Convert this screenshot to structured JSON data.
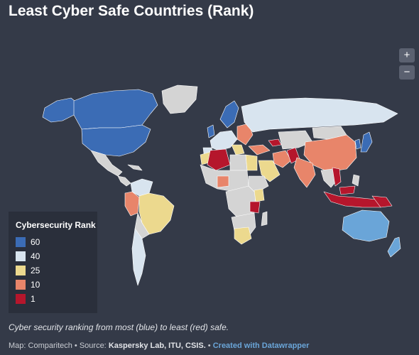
{
  "title": "Least Cyber Safe Countries (Rank)",
  "caption": "Cyber security ranking from most (blue) to least (red) safe.",
  "footer": {
    "map_prefix": "Map: Comparitech • Source: ",
    "sources": "Kaspersky Lab, ITU, CSIS.",
    "separator": " • ",
    "credit": "Created with Datawrapper"
  },
  "zoom": {
    "in_label": "+",
    "out_label": "−"
  },
  "legend": {
    "title": "Cybersecurity Rank",
    "items": [
      {
        "label": "60",
        "color": "#3b6cb5"
      },
      {
        "label": "40",
        "color": "#d8e4ef"
      },
      {
        "label": "25",
        "color": "#ecd98e"
      },
      {
        "label": "10",
        "color": "#e8856a"
      },
      {
        "label": "1",
        "color": "#b5162c"
      }
    ]
  },
  "colors": {
    "background": "#343a48",
    "no_data": "#d4d4d4",
    "ocean": "#343a48"
  }
}
